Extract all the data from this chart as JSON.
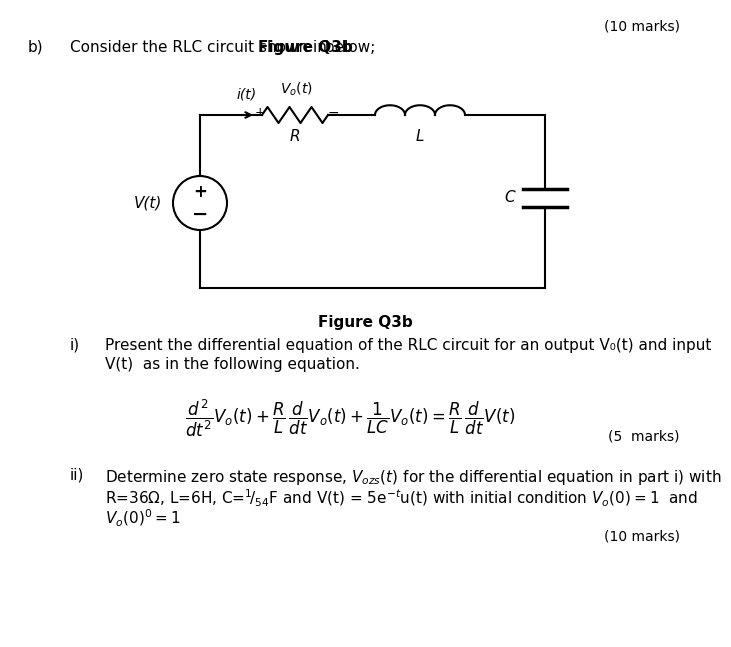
{
  "background_color": "#ffffff",
  "page_width": 6.91,
  "page_height": 6.27,
  "top_right_text": "(10 marks)",
  "part_b_label": "b)",
  "part_b_text_normal": "Consider the RLC circuit shown in ",
  "part_b_text_bold": "Figure Q3b",
  "part_b_text_end": " below;",
  "figure_caption": "Figure Q3b",
  "part_i_label": "i)",
  "part_i_text": "Present the differential equation of the RLC circuit for an output V₀(t) and input",
  "part_i_text2": "V(t)  as in the following equation.",
  "part_ii_label": "ii)",
  "marks_5": "(5  marks)",
  "marks_10_bottom": "(10 marks)"
}
